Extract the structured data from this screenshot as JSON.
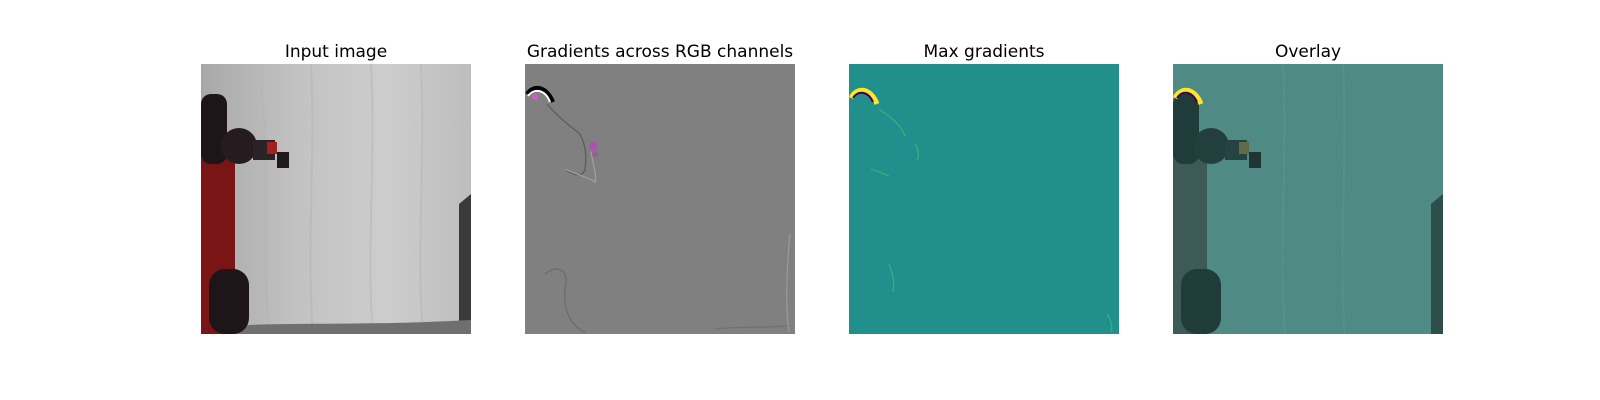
{
  "figure": {
    "panels": [
      {
        "title": "Input image"
      },
      {
        "title": "Gradients across RGB channels"
      },
      {
        "title": "Max gradients"
      },
      {
        "title": "Overlay"
      }
    ]
  },
  "colors": {
    "backdrop_gray": "#c4c4c4",
    "robot_red": "#7a1515",
    "robot_dark": "#1e1518",
    "gradient_gray": "#808080",
    "viridis_teal": "#21908d",
    "viridis_yellow": "#fde725",
    "overlay_teal": "#4f8a84"
  }
}
